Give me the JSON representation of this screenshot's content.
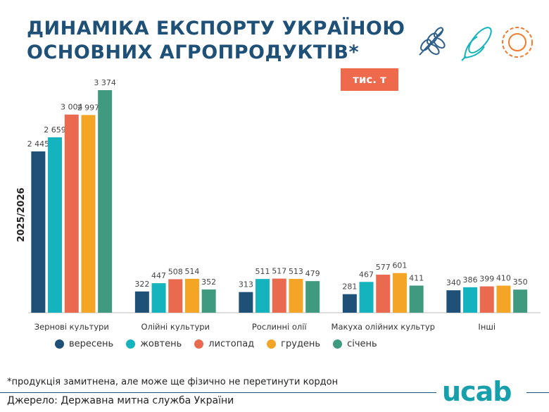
{
  "title": [
    "ДИНАМІКА ЕКСПОРТУ УКРАЇНОЮ",
    "ОСНОВНИХ АГРОПРОДУКТІВ*"
  ],
  "unit_badge": "тис. т",
  "footnote": "*продукція замитнена, але може ще фізично не перетинути кордон",
  "source": "Джерело: Державна митна служба України",
  "logo": "ucab",
  "icons": [
    "wheat-icon",
    "corn-icon",
    "sunflower-icon"
  ],
  "chart_data": {
    "type": "bar",
    "ylabel": "2025/2026",
    "categories": [
      "Зернові культури",
      "Олійні культури",
      "Рослинні олії",
      "Макуха олійних культур",
      "Інші"
    ],
    "series": [
      {
        "name": "вересень",
        "color": "#1f5077",
        "values": [
          2445,
          322,
          313,
          281,
          340
        ]
      },
      {
        "name": "жовтень",
        "color": "#14b3bd",
        "values": [
          2659,
          447,
          511,
          467,
          386
        ]
      },
      {
        "name": "листопад",
        "color": "#ea6a4f",
        "values": [
          3004,
          508,
          517,
          577,
          399
        ]
      },
      {
        "name": "грудень",
        "color": "#f4a526",
        "values": [
          2997,
          514,
          513,
          601,
          410
        ]
      },
      {
        "name": "січень",
        "color": "#3f9a80",
        "values": [
          3374,
          352,
          479,
          411,
          350
        ]
      }
    ],
    "legend": "bottom",
    "grid": false
  }
}
